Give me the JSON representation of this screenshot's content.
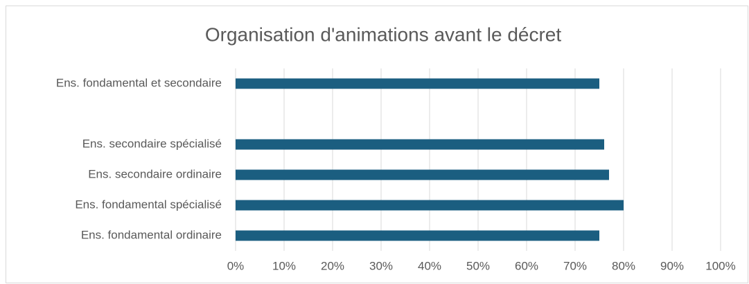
{
  "chart_data": {
    "type": "barh",
    "title": "Organisation d'animations avant le décret",
    "categories": [
      "Ens. fondamental et secondaire",
      null,
      "Ens. secondaire spécialisé",
      "Ens. secondaire ordinaire",
      "Ens. fondamental spécialisé",
      "Ens. fondamental ordinaire"
    ],
    "values": [
      75,
      null,
      76,
      77,
      80,
      75
    ],
    "color": "#1b5e80",
    "xlim": [
      0,
      100
    ],
    "xticks": [
      {
        "value": 0,
        "label": "0%"
      },
      {
        "value": 10,
        "label": "10%"
      },
      {
        "value": 20,
        "label": "20%"
      },
      {
        "value": 30,
        "label": "30%"
      },
      {
        "value": 40,
        "label": "40%"
      },
      {
        "value": 50,
        "label": "50%"
      },
      {
        "value": 60,
        "label": "60%"
      },
      {
        "value": 70,
        "label": "70%"
      },
      {
        "value": 80,
        "label": "80%"
      },
      {
        "value": 90,
        "label": "90%"
      },
      {
        "value": 100,
        "label": "100%"
      }
    ],
    "grid": true
  }
}
